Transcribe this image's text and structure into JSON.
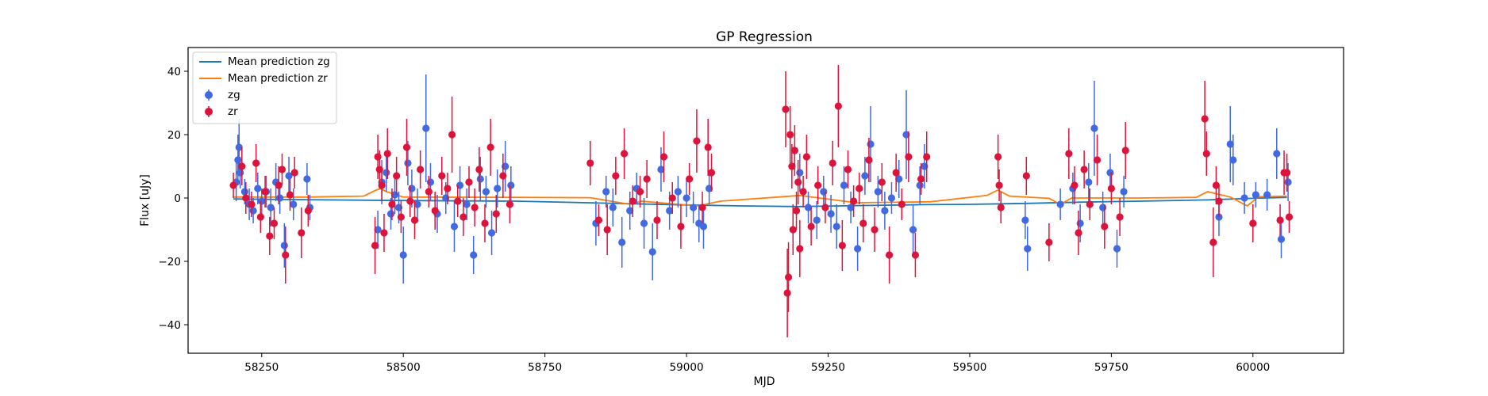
{
  "chart_data": {
    "type": "scatter",
    "title": "GP Regression",
    "xlabel": "MJD",
    "ylabel": "Flux [uJy]",
    "xlim": [
      58120,
      60160
    ],
    "ylim": [
      -49,
      47.5
    ],
    "xticks": [
      58250,
      58500,
      58750,
      59000,
      59250,
      59500,
      59750,
      60000
    ],
    "yticks": [
      -40,
      -20,
      0,
      20,
      40
    ],
    "grid": false,
    "legend_position": "top-left",
    "legend": {
      "line_zg": "Mean prediction zg",
      "line_zr": "Mean prediction zr",
      "pts_zg": "zg",
      "pts_zr": "zr"
    },
    "colors": {
      "line_zg": "#1f77b4",
      "line_zr": "#ff7f0e",
      "zg": "#4169e1",
      "zr": "#dc143c"
    },
    "series": [
      {
        "name": "Mean prediction zg",
        "kind": "line",
        "x": [
          58200,
          58300,
          58500,
          58700,
          58900,
          59000,
          59100,
          59200,
          59300,
          59420,
          59500,
          59600,
          59700,
          59800,
          59920,
          60000,
          60060
        ],
        "y": [
          -0.3,
          -0.5,
          -0.8,
          -1.0,
          -1.8,
          -2.2,
          -2.5,
          -2.7,
          -2.4,
          -2.1,
          -2.0,
          -1.7,
          -1.3,
          -1.0,
          -0.6,
          -0.1,
          0.2
        ]
      },
      {
        "name": "Mean prediction zr",
        "kind": "line",
        "x": [
          58200,
          58330,
          58430,
          58452,
          58460,
          58470,
          58500,
          58700,
          58830,
          58900,
          58920,
          59020,
          59060,
          59200,
          59300,
          59430,
          59530,
          59550,
          59570,
          59640,
          59660,
          59680,
          59800,
          59900,
          59920,
          59960,
          59990,
          60010,
          60060
        ],
        "y": [
          0.3,
          0.3,
          0.6,
          2.5,
          3.0,
          2.0,
          0.3,
          0.2,
          0.1,
          -2.0,
          -1.0,
          -2.5,
          -1.0,
          0.8,
          -1.5,
          -1.2,
          0.8,
          2.5,
          0.6,
          -0.1,
          -2.0,
          0.0,
          0.0,
          0.2,
          2.0,
          0.3,
          -2.5,
          0.4,
          0.6
        ]
      },
      {
        "name": "zg",
        "kind": "errorbar",
        "points": [
          [
            58205,
            5,
            6
          ],
          [
            58208,
            12,
            8
          ],
          [
            58210,
            16,
            9
          ],
          [
            58212,
            8,
            5
          ],
          [
            58220,
            2,
            4
          ],
          [
            58228,
            -2,
            5
          ],
          [
            58235,
            -4,
            4
          ],
          [
            58243,
            3,
            5
          ],
          [
            58250,
            -1,
            4
          ],
          [
            58258,
            2,
            5
          ],
          [
            58266,
            -3,
            6
          ],
          [
            58275,
            5,
            6
          ],
          [
            58282,
            0,
            5
          ],
          [
            58290,
            -15,
            7
          ],
          [
            58298,
            7,
            6
          ],
          [
            58306,
            -2,
            5
          ],
          [
            58330,
            6,
            5
          ],
          [
            58335,
            -3,
            4
          ],
          [
            58455,
            -10,
            6
          ],
          [
            58462,
            5,
            7
          ],
          [
            58470,
            8,
            6
          ],
          [
            58478,
            -5,
            5
          ],
          [
            58485,
            1,
            6
          ],
          [
            58492,
            -3,
            5
          ],
          [
            58500,
            -18,
            9
          ],
          [
            58508,
            11,
            7
          ],
          [
            58515,
            3,
            6
          ],
          [
            58525,
            -2,
            5
          ],
          [
            58540,
            22,
            17
          ],
          [
            58548,
            5,
            6
          ],
          [
            58560,
            -5,
            6
          ],
          [
            58575,
            0,
            5
          ],
          [
            58590,
            -9,
            8
          ],
          [
            58600,
            4,
            6
          ],
          [
            58612,
            -2,
            5
          ],
          [
            58624,
            -18,
            6
          ],
          [
            58636,
            6,
            7
          ],
          [
            58646,
            2,
            5
          ],
          [
            58656,
            -11,
            7
          ],
          [
            58666,
            3,
            6
          ],
          [
            58680,
            10,
            8
          ],
          [
            58690,
            4,
            6
          ],
          [
            58840,
            -8,
            7
          ],
          [
            58858,
            2,
            5
          ],
          [
            58870,
            -3,
            6
          ],
          [
            58886,
            -14,
            8
          ],
          [
            58900,
            -4,
            6
          ],
          [
            58912,
            3,
            5
          ],
          [
            58925,
            -8,
            8
          ],
          [
            58940,
            -17,
            9
          ],
          [
            58955,
            9,
            7
          ],
          [
            58970,
            -4,
            6
          ],
          [
            58985,
            2,
            5
          ],
          [
            59000,
            0,
            6
          ],
          [
            59012,
            -3,
            5
          ],
          [
            59022,
            -8,
            6
          ],
          [
            59030,
            -9,
            7
          ],
          [
            59040,
            3,
            5
          ],
          [
            59200,
            8,
            6
          ],
          [
            59215,
            -3,
            5
          ],
          [
            59230,
            -7,
            6
          ],
          [
            59242,
            2,
            5
          ],
          [
            59255,
            -5,
            6
          ],
          [
            59265,
            -9,
            7
          ],
          [
            59278,
            4,
            6
          ],
          [
            59290,
            -3,
            5
          ],
          [
            59302,
            -16,
            7
          ],
          [
            59315,
            7,
            6
          ],
          [
            59325,
            17,
            12
          ],
          [
            59338,
            2,
            5
          ],
          [
            59350,
            -4,
            6
          ],
          [
            59362,
            0,
            5
          ],
          [
            59375,
            6,
            6
          ],
          [
            59388,
            20,
            14
          ],
          [
            59400,
            -10,
            8
          ],
          [
            59412,
            4,
            6
          ],
          [
            59420,
            10,
            7
          ],
          [
            59598,
            -7,
            6
          ],
          [
            59602,
            -16,
            7
          ],
          [
            59660,
            -2,
            5
          ],
          [
            59682,
            3,
            5
          ],
          [
            59695,
            -8,
            6
          ],
          [
            59710,
            5,
            6
          ],
          [
            59720,
            22,
            15
          ],
          [
            59735,
            -3,
            5
          ],
          [
            59748,
            8,
            6
          ],
          [
            59760,
            -16,
            6
          ],
          [
            59772,
            2,
            5
          ],
          [
            59940,
            -6,
            6
          ],
          [
            59960,
            17,
            12
          ],
          [
            59965,
            12,
            8
          ],
          [
            59985,
            0,
            5
          ],
          [
            60005,
            1,
            4
          ],
          [
            60025,
            1,
            5
          ],
          [
            60042,
            14,
            8
          ],
          [
            60050,
            -13,
            6
          ],
          [
            60062,
            5,
            6
          ]
        ]
      },
      {
        "name": "zr",
        "kind": "errorbar",
        "points": [
          [
            58200,
            4,
            4
          ],
          [
            58215,
            10,
            6
          ],
          [
            58222,
            0,
            5
          ],
          [
            58232,
            -2,
            4
          ],
          [
            58240,
            11,
            6
          ],
          [
            58248,
            -6,
            5
          ],
          [
            58256,
            2,
            5
          ],
          [
            58264,
            -12,
            6
          ],
          [
            58272,
            -8,
            5
          ],
          [
            58280,
            4,
            6
          ],
          [
            58286,
            9,
            5
          ],
          [
            58292,
            -18,
            9
          ],
          [
            58300,
            1,
            5
          ],
          [
            58308,
            8,
            5
          ],
          [
            58320,
            -11,
            8
          ],
          [
            58332,
            -4,
            5
          ],
          [
            58450,
            -15,
            9
          ],
          [
            58455,
            13,
            7
          ],
          [
            58458,
            9,
            6
          ],
          [
            58462,
            4,
            5
          ],
          [
            58466,
            -11,
            6
          ],
          [
            58472,
            14,
            8
          ],
          [
            58480,
            -2,
            5
          ],
          [
            58488,
            7,
            6
          ],
          [
            58496,
            -6,
            5
          ],
          [
            58506,
            16,
            9
          ],
          [
            58512,
            -1,
            5
          ],
          [
            58520,
            -7,
            6
          ],
          [
            58530,
            9,
            6
          ],
          [
            58545,
            2,
            5
          ],
          [
            58556,
            -4,
            6
          ],
          [
            58568,
            7,
            6
          ],
          [
            58578,
            3,
            5
          ],
          [
            58586,
            20,
            12
          ],
          [
            58596,
            -1,
            5
          ],
          [
            58606,
            -6,
            6
          ],
          [
            58616,
            5,
            5
          ],
          [
            58626,
            -3,
            6
          ],
          [
            58634,
            9,
            7
          ],
          [
            58644,
            -8,
            6
          ],
          [
            58654,
            16,
            9
          ],
          [
            58664,
            -5,
            6
          ],
          [
            58676,
            7,
            7
          ],
          [
            58688,
            -2,
            6
          ],
          [
            58830,
            11,
            7
          ],
          [
            58845,
            -7,
            5
          ],
          [
            58860,
            -10,
            8
          ],
          [
            58875,
            7,
            6
          ],
          [
            58890,
            14,
            8
          ],
          [
            58905,
            -1,
            5
          ],
          [
            58918,
            2,
            5
          ],
          [
            58930,
            6,
            6
          ],
          [
            58948,
            -7,
            6
          ],
          [
            58960,
            13,
            8
          ],
          [
            58975,
            0,
            5
          ],
          [
            58990,
            -9,
            7
          ],
          [
            59005,
            6,
            5
          ],
          [
            59018,
            18,
            10
          ],
          [
            59028,
            -3,
            5
          ],
          [
            59038,
            16,
            9
          ],
          [
            59044,
            8,
            6
          ],
          [
            59175,
            28,
            12
          ],
          [
            59178,
            -30,
            14
          ],
          [
            59180,
            -25,
            11
          ],
          [
            59183,
            20,
            9
          ],
          [
            59186,
            10,
            7
          ],
          [
            59188,
            -10,
            8
          ],
          [
            59191,
            15,
            8
          ],
          [
            59194,
            -4,
            6
          ],
          [
            59197,
            5,
            7
          ],
          [
            59200,
            -16,
            9
          ],
          [
            59206,
            2,
            5
          ],
          [
            59212,
            13,
            7
          ],
          [
            59220,
            -9,
            6
          ],
          [
            59232,
            4,
            6
          ],
          [
            59245,
            -3,
            5
          ],
          [
            59258,
            11,
            7
          ],
          [
            59268,
            29,
            13
          ],
          [
            59275,
            -15,
            8
          ],
          [
            59285,
            9,
            6
          ],
          [
            59295,
            -1,
            5
          ],
          [
            59305,
            3,
            5
          ],
          [
            59312,
            -8,
            6
          ],
          [
            59322,
            12,
            7
          ],
          [
            59332,
            -10,
            7
          ],
          [
            59345,
            5,
            6
          ],
          [
            59358,
            -18,
            9
          ],
          [
            59370,
            8,
            6
          ],
          [
            59380,
            -2,
            5
          ],
          [
            59392,
            13,
            8
          ],
          [
            59404,
            -18,
            7
          ],
          [
            59414,
            6,
            5
          ],
          [
            59424,
            13,
            8
          ],
          [
            59550,
            13,
            7
          ],
          [
            59552,
            4,
            5
          ],
          [
            59555,
            -3,
            5
          ],
          [
            59600,
            7,
            6
          ],
          [
            59640,
            -14,
            6
          ],
          [
            59675,
            14,
            8
          ],
          [
            59685,
            4,
            6
          ],
          [
            59692,
            -11,
            7
          ],
          [
            59702,
            9,
            6
          ],
          [
            59712,
            -2,
            5
          ],
          [
            59725,
            12,
            8
          ],
          [
            59738,
            -9,
            7
          ],
          [
            59750,
            3,
            5
          ],
          [
            59765,
            -6,
            6
          ],
          [
            59775,
            15,
            9
          ],
          [
            59915,
            25,
            12
          ],
          [
            59918,
            14,
            7
          ],
          [
            59930,
            -14,
            11
          ],
          [
            59935,
            4,
            6
          ],
          [
            59940,
            -1,
            5
          ],
          [
            60000,
            -8,
            6
          ],
          [
            60048,
            -7,
            5
          ],
          [
            60055,
            8,
            7
          ],
          [
            60060,
            8,
            6
          ],
          [
            60064,
            -6,
            5
          ]
        ]
      }
    ]
  }
}
